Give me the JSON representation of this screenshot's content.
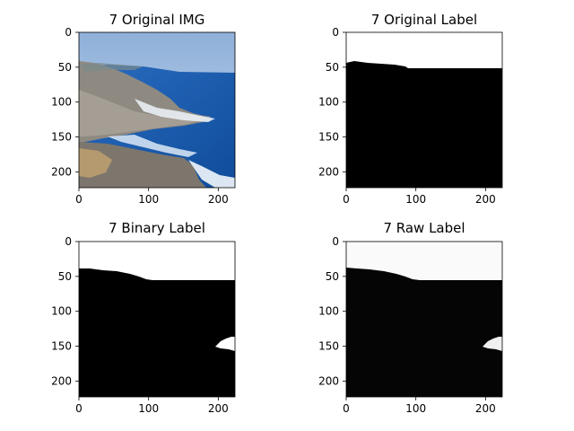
{
  "panels": [
    {
      "title": "7 Original IMG",
      "image_kind": "coastal-photo",
      "x_ticks": [
        "0",
        "100",
        "200"
      ],
      "y_ticks": [
        "0",
        "50",
        "100",
        "150",
        "200"
      ]
    },
    {
      "title": "7 Original Label",
      "image_kind": "binary-mask",
      "x_ticks": [
        "0",
        "100",
        "200"
      ],
      "y_ticks": [
        "0",
        "50",
        "100",
        "150",
        "200"
      ]
    },
    {
      "title": "7 Binary Label",
      "image_kind": "binary-mask",
      "x_ticks": [
        "0",
        "100",
        "200"
      ],
      "y_ticks": [
        "0",
        "50",
        "100",
        "150",
        "200"
      ]
    },
    {
      "title": "7 Raw Label",
      "image_kind": "soft-mask",
      "x_ticks": [
        "0",
        "100",
        "200"
      ],
      "y_ticks": [
        "0",
        "50",
        "100",
        "150",
        "200"
      ]
    }
  ],
  "colors": {
    "mask_foreground": "#000000",
    "mask_background": "#ffffff",
    "sky": "#9fb8d8",
    "sea": "#1d5fb0",
    "rock": "#8a847a",
    "foam": "#e8f2fb"
  }
}
